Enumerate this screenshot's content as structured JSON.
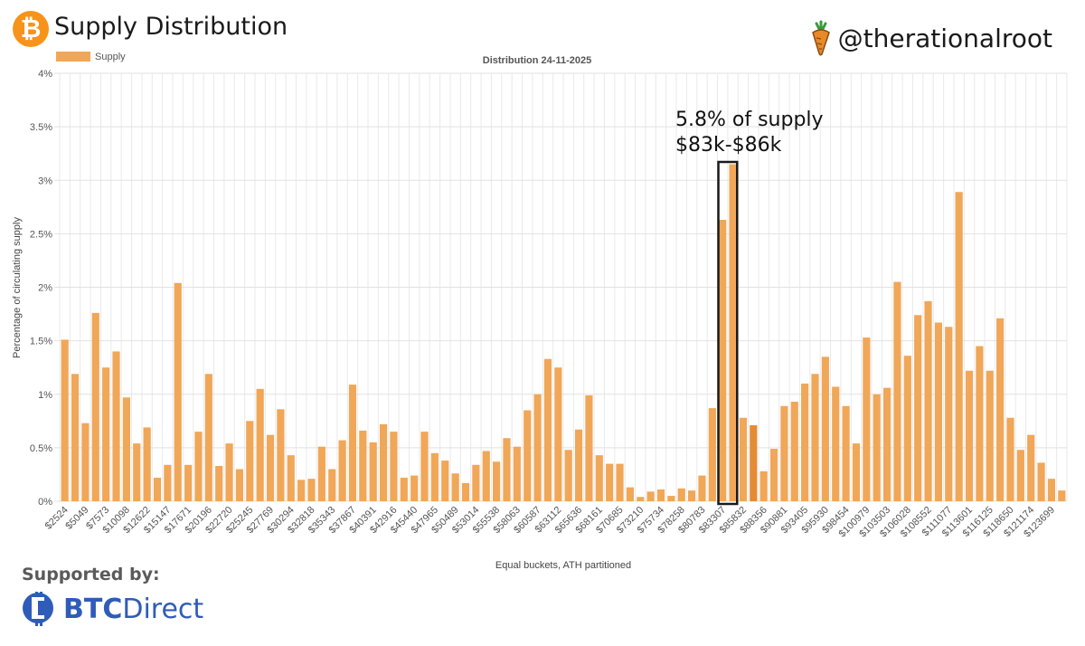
{
  "header": {
    "title": "Supply Distribution",
    "handle": "@therationalroot",
    "bitcoin_icon": "bitcoin-icon",
    "carrot_icon": "carrot-icon"
  },
  "footer": {
    "supported_by": "Supported by:",
    "sponsor_brand": "BTC",
    "sponsor_brand_2": "Direct"
  },
  "colors": {
    "bar": "#f0a758",
    "bar_highlight": "#e48b35",
    "bitcoin": "#f7931a",
    "btcdirect": "#2f5cb8"
  },
  "chart_data": {
    "type": "bar",
    "title": "Distribution 24-11-2025",
    "xlabel": "Equal buckets, ATH partitioned",
    "ylabel": "Percentage of circulating supply",
    "legend": {
      "label": "Supply",
      "placement": "top-left"
    },
    "ylim": [
      0,
      4
    ],
    "yticks": [
      "0%",
      "0.5%",
      "1%",
      "1.5%",
      "2%",
      "2.5%",
      "3%",
      "3.5%",
      "4%"
    ],
    "grid": true,
    "x_tick_labels": [
      "$2524",
      "$5049",
      "$7573",
      "$10098",
      "$12622",
      "$15147",
      "$17671",
      "$20196",
      "$22720",
      "$25245",
      "$27769",
      "$30294",
      "$32818",
      "$35343",
      "$37867",
      "$40391",
      "$42916",
      "$45440",
      "$47965",
      "$50489",
      "$53014",
      "$55538",
      "$58063",
      "$60587",
      "$63112",
      "$65636",
      "$68161",
      "$70685",
      "$73210",
      "$75734",
      "$78258",
      "$80783",
      "$83307",
      "$85832",
      "$88356",
      "$90881",
      "$93405",
      "$95930",
      "$98454",
      "$100979",
      "$103503",
      "$106028",
      "$108552",
      "$111077",
      "$113601",
      "$116125",
      "$118650",
      "$121174",
      "$123699"
    ],
    "values": [
      1.51,
      1.19,
      0.73,
      1.76,
      1.25,
      1.4,
      0.97,
      0.54,
      0.69,
      0.22,
      0.34,
      2.04,
      0.34,
      0.65,
      1.19,
      0.33,
      0.54,
      0.3,
      0.75,
      1.05,
      0.62,
      0.86,
      0.43,
      0.2,
      0.21,
      0.51,
      0.3,
      0.57,
      1.09,
      0.66,
      0.55,
      0.72,
      0.65,
      0.22,
      0.24,
      0.65,
      0.45,
      0.38,
      0.26,
      0.17,
      0.34,
      0.47,
      0.37,
      0.59,
      0.51,
      0.85,
      1.0,
      1.33,
      1.25,
      0.48,
      0.67,
      0.99,
      0.43,
      0.35,
      0.35,
      0.13,
      0.04,
      0.09,
      0.11,
      0.05,
      0.12,
      0.1,
      0.24,
      0.87,
      2.63,
      3.15,
      0.78,
      0.71,
      0.28,
      0.49,
      0.89,
      0.93,
      1.1,
      1.19,
      1.35,
      1.07,
      0.89,
      0.54,
      1.53,
      1.0,
      1.06,
      2.05,
      1.36,
      1.74,
      1.87,
      1.67,
      1.63,
      2.89,
      1.22,
      1.45,
      1.22,
      1.71,
      0.78,
      0.48,
      0.62,
      0.36,
      0.21,
      0.1
    ],
    "highlight_index": 67,
    "annotation": {
      "line1": "5.8% of supply",
      "line2": "$83k-$86k",
      "box_from_index": 64,
      "box_to_index": 65
    }
  }
}
